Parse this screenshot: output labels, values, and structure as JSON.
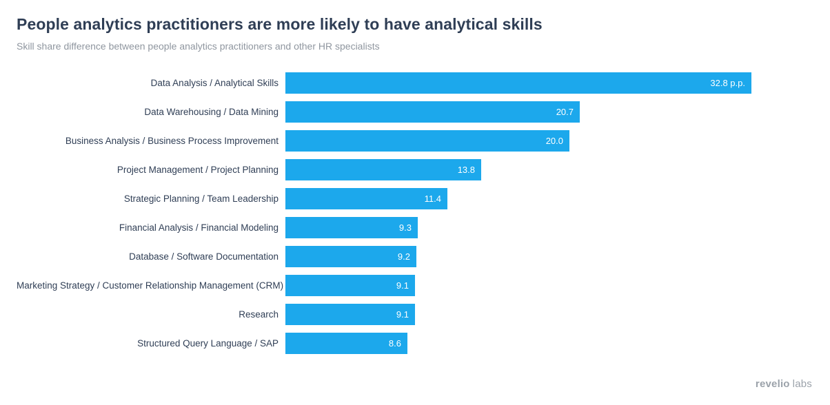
{
  "header": {
    "title": "People analytics practitioners are more likely to have analytical skills",
    "subtitle": "Skill share difference between people analytics practitioners and other HR specialists"
  },
  "chart_data": {
    "type": "bar",
    "orientation": "horizontal",
    "title": "People analytics practitioners are more likely to have analytical skills",
    "subtitle": "Skill share difference between people analytics practitioners and other HR specialists",
    "categories": [
      "Data Analysis / Analytical Skills",
      "Data Warehousing / Data Mining",
      "Business Analysis / Business Process Improvement",
      "Project Management / Project Planning",
      "Strategic Planning / Team Leadership",
      "Financial Analysis / Financial Modeling",
      "Database / Software Documentation",
      "Marketing Strategy / Customer Relationship Management (CRM)",
      "Research",
      "Structured Query Language / SAP"
    ],
    "values": [
      32.8,
      20.7,
      20.0,
      13.8,
      11.4,
      9.3,
      9.2,
      9.1,
      9.1,
      8.6
    ],
    "value_labels": [
      "32.8 p.p.",
      "20.7",
      "20.0",
      "13.8",
      "11.4",
      "9.3",
      "9.2",
      "9.1",
      "9.1",
      "8.6"
    ],
    "unit": "p.p.",
    "xlim": [
      0,
      32.8
    ],
    "grid": false,
    "axes_visible": false,
    "legend": "none",
    "bar_color": "#1ca8ec",
    "value_label_color": "#ffffff",
    "label_color": "#2f3e55"
  },
  "footer": {
    "logo_part1": "revelio",
    "logo_part2": "labs"
  }
}
